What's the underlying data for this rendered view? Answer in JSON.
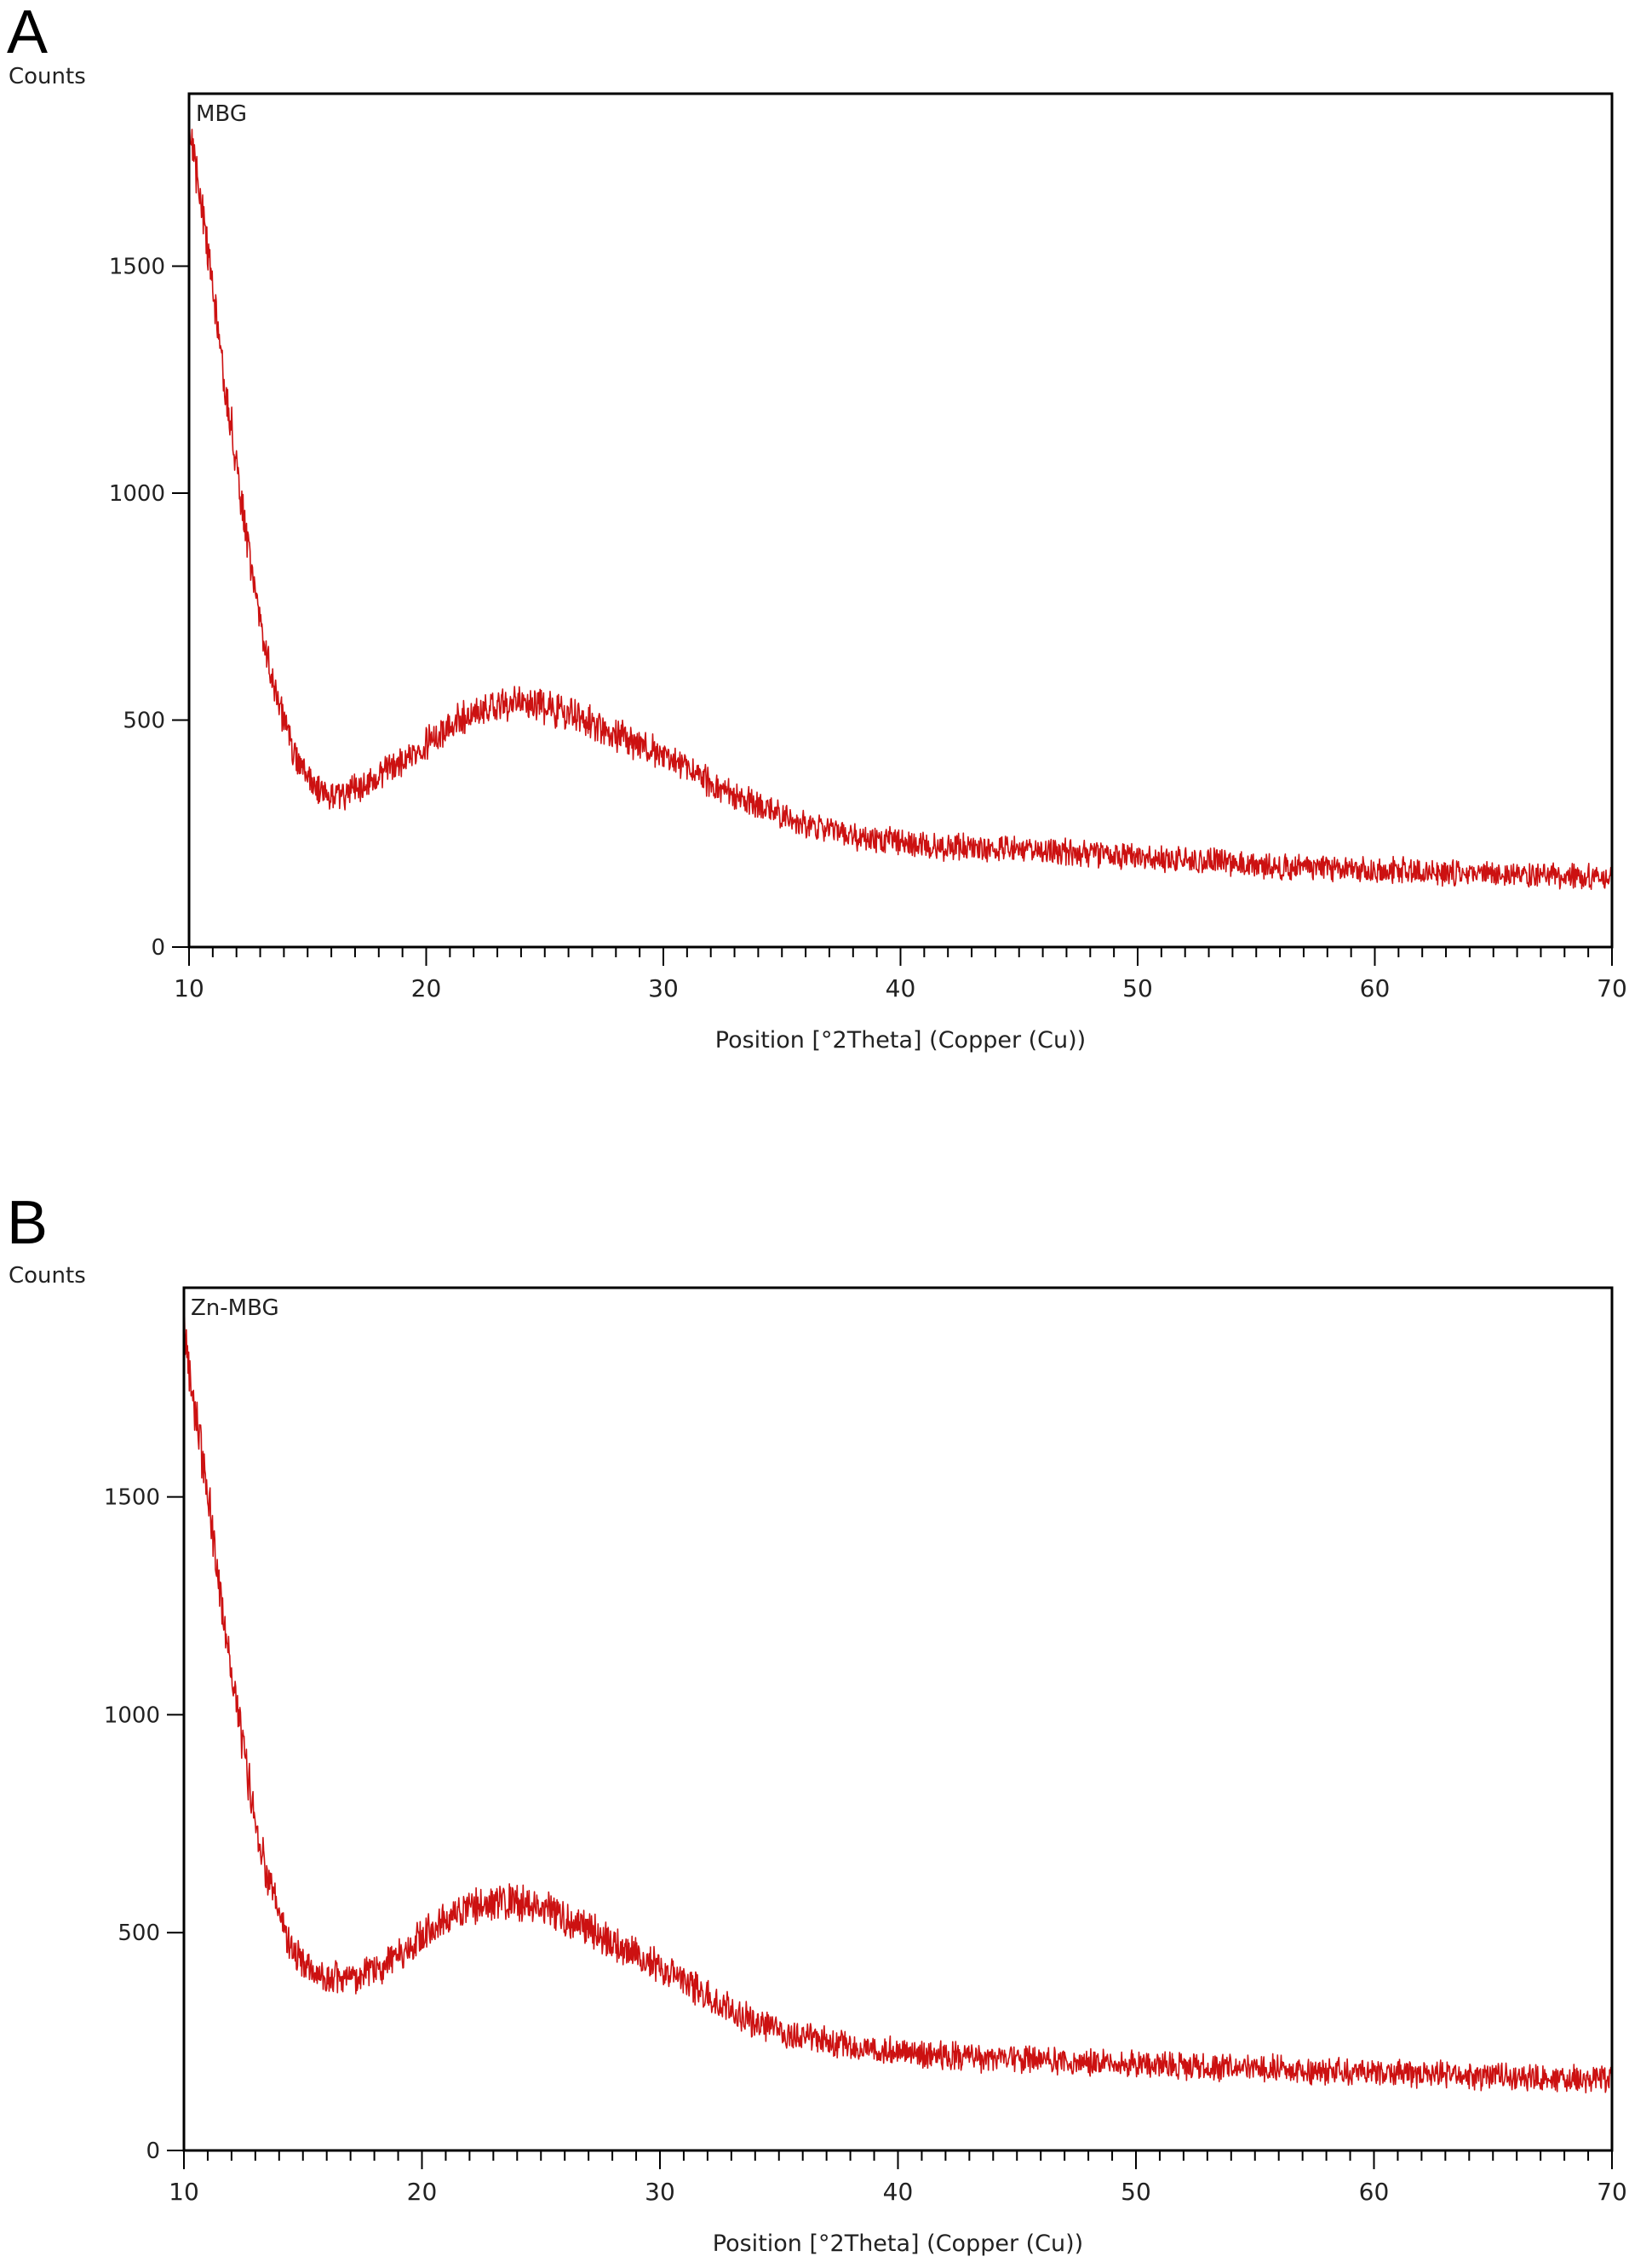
{
  "panels": [
    {
      "label": "A"
    },
    {
      "label": "B"
    }
  ],
  "chart_data": [
    {
      "type": "line",
      "panel": "A",
      "ylabel": "Counts",
      "xlabel": "Position [°2Theta] (Copper (Cu))",
      "series": [
        {
          "name": "MBG",
          "color": "#cc1111"
        }
      ],
      "xlim": [
        10,
        70
      ],
      "ylim": [
        0,
        1880
      ],
      "xticks": [
        "10",
        "20",
        "30",
        "40",
        "50",
        "60",
        "70"
      ],
      "yticks": [
        "0",
        "500",
        "1000",
        "1500"
      ],
      "grid": false,
      "profile": {
        "x": [
          10,
          10.5,
          11,
          11.5,
          12,
          12.5,
          13,
          13.5,
          14,
          14.5,
          15,
          15.5,
          16,
          16.5,
          17,
          17.5,
          18,
          19,
          20,
          21,
          22,
          23,
          24,
          25,
          26,
          27,
          28,
          29,
          30,
          31,
          32,
          33,
          34,
          35,
          36,
          37,
          38,
          39,
          40,
          42,
          44,
          46,
          48,
          50,
          52,
          54,
          56,
          58,
          60,
          62,
          64,
          66,
          68,
          70
        ],
        "y": [
          1820,
          1650,
          1450,
          1250,
          1060,
          880,
          720,
          590,
          490,
          420,
          370,
          340,
          325,
          330,
          345,
          360,
          375,
          410,
          450,
          490,
          520,
          535,
          540,
          530,
          515,
          495,
          470,
          445,
          420,
          390,
          360,
          335,
          310,
          290,
          270,
          255,
          245,
          238,
          230,
          222,
          216,
          212,
          205,
          198,
          192,
          186,
          180,
          175,
          170,
          166,
          163,
          160,
          157,
          155
        ]
      },
      "noise_amplitude": 22
    },
    {
      "type": "line",
      "panel": "B",
      "ylabel": "Counts",
      "xlabel": "Position [°2Theta] (Copper (Cu))",
      "series": [
        {
          "name": "Zn-MBG",
          "color": "#cc1111"
        }
      ],
      "xlim": [
        10,
        70
      ],
      "ylim": [
        0,
        1980
      ],
      "xticks": [
        "10",
        "20",
        "30",
        "40",
        "50",
        "60",
        "70"
      ],
      "yticks": [
        "0",
        "500",
        "1000",
        "1500"
      ],
      "grid": false,
      "profile": {
        "x": [
          10,
          10.5,
          11,
          11.5,
          12,
          12.5,
          13,
          13.5,
          14,
          14.5,
          15,
          15.5,
          16,
          16.5,
          17,
          17.5,
          18,
          19,
          20,
          21,
          22,
          23,
          24,
          25,
          26,
          27,
          28,
          29,
          30,
          31,
          32,
          33,
          34,
          35,
          36,
          37,
          38,
          39,
          40,
          42,
          44,
          46,
          48,
          50,
          52,
          54,
          56,
          58,
          60,
          62,
          64,
          66,
          68,
          70
        ],
        "y": [
          1880,
          1700,
          1500,
          1290,
          1100,
          920,
          760,
          630,
          540,
          470,
          430,
          405,
          395,
          393,
          395,
          400,
          410,
          450,
          490,
          530,
          555,
          565,
          570,
          560,
          535,
          505,
          475,
          450,
          420,
          390,
          355,
          320,
          295,
          275,
          260,
          250,
          240,
          232,
          225,
          218,
          212,
          207,
          202,
          198,
          194,
          190,
          186,
          182,
          178,
          175,
          172,
          168,
          165,
          162
        ]
      },
      "noise_amplitude": 24
    }
  ]
}
